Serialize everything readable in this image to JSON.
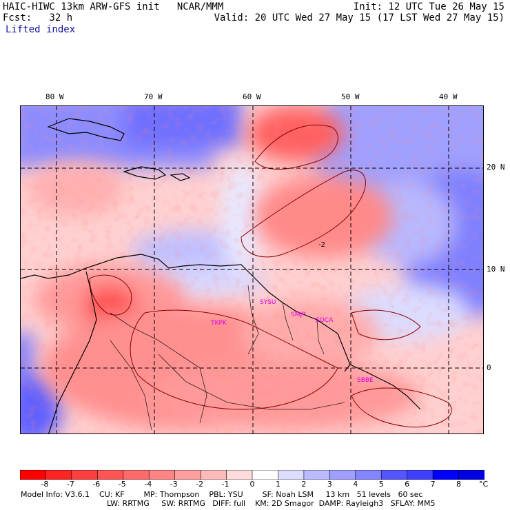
{
  "header": {
    "title_left": "HAIC-HIWC 13km ARW-GFS init   NCAR/MMM",
    "forecast": "Fcst:   32 h",
    "field": "Lifted index",
    "init": "Init: 12 UTC Tue 26 May 15",
    "valid": "Valid: 20 UTC Wed 27 May 15 (17 LST Wed 27 May 15)"
  },
  "map": {
    "lon_labels": [
      "80 W",
      "70 W",
      "60 W",
      "50 W",
      "40 W"
    ],
    "lat_labels": [
      "20 N",
      "10 N",
      "0"
    ],
    "contour_label": "-2",
    "stations": [
      "TKPK",
      "SYSU",
      "SMJP",
      "SOCA",
      "SBBE"
    ]
  },
  "colorbar": {
    "labels": [
      "-8",
      "-7",
      "-6",
      "-5",
      "-4",
      "-3",
      "-2",
      "-1",
      "0",
      "1",
      "2",
      "3",
      "4",
      "5",
      "6",
      "7",
      "8"
    ],
    "unit": "°C",
    "colors": [
      "#ff0000",
      "#ff2424",
      "#ff3f3f",
      "#ff5555",
      "#ff6a6a",
      "#ff8585",
      "#ff9f9f",
      "#ffbaba",
      "#ffdcdc",
      "#ffffff",
      "#dcdcff",
      "#babaff",
      "#9f9fff",
      "#8585ff",
      "#5555ff",
      "#3f3fff",
      "#0000ff",
      "#0000e0"
    ]
  },
  "model_info": {
    "line1": "Model Info: V3.6.1    CU: KF        MP: Thompson    PBL: YSU        SF: Noah LSM     13 km   51 levels   60 sec",
    "line2": "LW: RRTMG     SW: RRTMG   DIFF: full    KM: 2D Smagor  DAMP: Rayleigh3   SFLAY: MM5"
  }
}
